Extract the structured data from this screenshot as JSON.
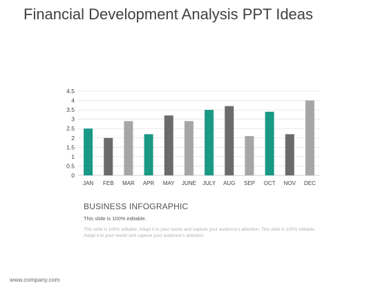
{
  "slide": {
    "title": "Financial Development Analysis PPT Ideas",
    "footer": "www.company.com"
  },
  "info": {
    "heading": "BUSINESS INFOGRAPHIC",
    "subheading": "This slide is 100% editable.",
    "body": "This slide is 100% editable. Adapt it to your needs and capture your audience's attention. This slide is 100% editable. Adapt it to your needs and capture your audience's attention."
  },
  "chart_data": {
    "type": "bar",
    "title": "",
    "xlabel": "",
    "ylabel": "",
    "categories": [
      "JAN",
      "FEB",
      "MAR",
      "APR",
      "MAY",
      "JUNE",
      "JULY",
      "AUG",
      "SEP",
      "OCT",
      "NOV",
      "DEC"
    ],
    "values": [
      2.5,
      2.0,
      2.9,
      2.2,
      3.2,
      2.9,
      3.5,
      3.7,
      2.1,
      3.4,
      2.2,
      4.0
    ],
    "bar_colors": [
      "#1a9985",
      "#6b6b6b",
      "#a6a6a6",
      "#1a9985",
      "#6b6b6b",
      "#a6a6a6",
      "#1a9985",
      "#6b6b6b",
      "#a6a6a6",
      "#1a9985",
      "#6b6b6b",
      "#a6a6a6"
    ],
    "y_ticks": [
      "0",
      "0.5",
      "1",
      "1.5",
      "2",
      "2.5",
      "3",
      "3.5",
      "4",
      "4.5"
    ],
    "ylim": [
      0,
      4.5
    ],
    "grid": true,
    "legend": "none"
  }
}
